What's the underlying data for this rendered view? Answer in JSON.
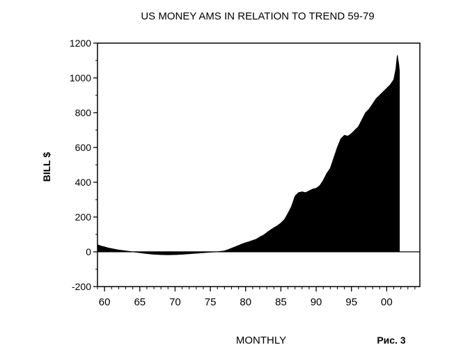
{
  "figure_label": "Рис. 3",
  "chart_data": {
    "type": "area",
    "title": "US MONEY AMS IN RELATION TO TREND 59-79",
    "xlabel": "MONTHLY",
    "ylabel": "BILL $",
    "xlim": [
      1959,
      2004.7
    ],
    "ylim": [
      -200,
      1200
    ],
    "yticks": [
      -200,
      0,
      200,
      400,
      600,
      800,
      1000,
      1200
    ],
    "ytick_labels": [
      "-200",
      "0",
      "200",
      "400",
      "600",
      "800",
      "1000",
      "1200"
    ],
    "xticks": [
      1960,
      1965,
      1970,
      1975,
      1980,
      1985,
      1990,
      1995,
      2000
    ],
    "xtick_labels": [
      "60",
      "65",
      "70",
      "75",
      "80",
      "85",
      "90",
      "95",
      "00"
    ],
    "grid": false,
    "legend": "none",
    "series": [
      {
        "x": [
          1959.0,
          1959.5,
          1960.0,
          1960.5,
          1961.0,
          1961.5,
          1962.0,
          1963.0,
          1964.0,
          1965.0,
          1966.0,
          1967.0,
          1968.0,
          1969.0,
          1970.0,
          1971.0,
          1972.0,
          1973.0,
          1974.0,
          1975.0,
          1976.0,
          1977.0,
          1977.5,
          1978.0,
          1978.5,
          1979.0,
          1979.5,
          1980.0,
          1980.5,
          1981.0,
          1981.5,
          1982.0,
          1982.5,
          1983.0,
          1983.5,
          1984.0,
          1984.5,
          1985.0,
          1985.5,
          1986.0,
          1986.5,
          1987.0,
          1987.5,
          1988.0,
          1988.5,
          1989.0,
          1989.5,
          1990.0,
          1990.5,
          1991.0,
          1991.5,
          1992.0,
          1992.5,
          1993.0,
          1993.5,
          1994.0,
          1994.5,
          1995.0,
          1995.5,
          1996.0,
          1996.5,
          1997.0,
          1997.5,
          1998.0,
          1998.5,
          1999.0,
          1999.5,
          2000.0,
          2000.5,
          2001.0,
          2001.3,
          2001.5,
          2001.7,
          2001.8
        ],
        "values": [
          40,
          33,
          28,
          22,
          18,
          14,
          10,
          5,
          0,
          -5,
          -10,
          -14,
          -16,
          -17,
          -16,
          -14,
          -11,
          -8,
          -5,
          -2,
          0,
          5,
          12,
          20,
          28,
          36,
          45,
          52,
          58,
          65,
          72,
          85,
          95,
          110,
          125,
          138,
          150,
          165,
          185,
          220,
          260,
          320,
          340,
          345,
          340,
          350,
          360,
          365,
          380,
          410,
          450,
          480,
          540,
          600,
          650,
          670,
          665,
          680,
          700,
          720,
          760,
          800,
          820,
          850,
          880,
          900,
          920,
          940,
          960,
          990,
          1050,
          1130,
          1080,
          1040
        ]
      }
    ]
  }
}
